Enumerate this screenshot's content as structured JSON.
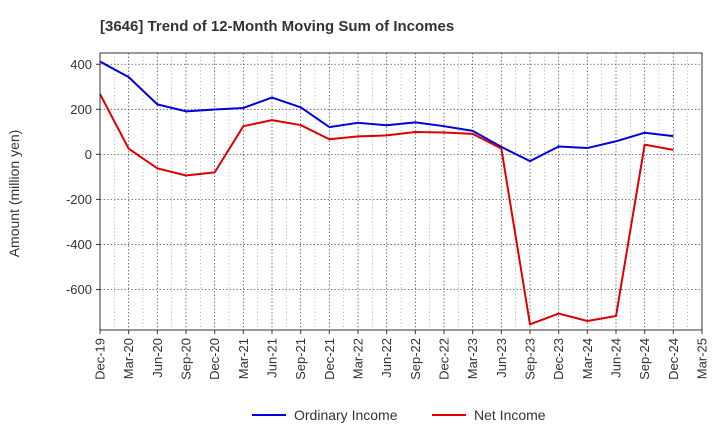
{
  "chart_data": {
    "type": "line",
    "title": "[3646]  Trend of 12-Month Moving Sum of Incomes",
    "xlabel": "",
    "ylabel": "Amount (million yen)",
    "ylim": [
      -780,
      450
    ],
    "yticks": [
      400,
      200,
      0,
      -200,
      -400,
      -600
    ],
    "ytick_labels": [
      "400",
      "200",
      "0",
      "-200",
      "-400",
      "-600"
    ],
    "x_tick_labels": [
      "Dec-19",
      "Mar-20",
      "Jun-20",
      "Sep-20",
      "Dec-20",
      "Mar-21",
      "Jun-21",
      "Sep-21",
      "Dec-21",
      "Mar-22",
      "Jun-22",
      "Sep-22",
      "Dec-22",
      "Mar-23",
      "Jun-23",
      "Sep-23",
      "Dec-23",
      "Mar-24",
      "Jun-24",
      "Sep-24",
      "Dec-24",
      "Mar-25"
    ],
    "grid": true,
    "legend_position": "bottom",
    "series": [
      {
        "name": "Ordinary Income",
        "color": "#0000dd",
        "values": [
          412,
          343,
          222,
          191,
          199,
          206,
          252,
          209,
          121,
          140,
          129,
          142,
          125,
          104,
          33,
          -30,
          35,
          28,
          58,
          96,
          81,
          null
        ]
      },
      {
        "name": "Net Income",
        "color": "#dd0000",
        "values": [
          268,
          25,
          -62,
          -94,
          -80,
          125,
          152,
          130,
          67,
          80,
          84,
          99,
          97,
          91,
          26,
          -755,
          -707,
          -740,
          -718,
          43,
          20,
          null
        ]
      }
    ]
  }
}
